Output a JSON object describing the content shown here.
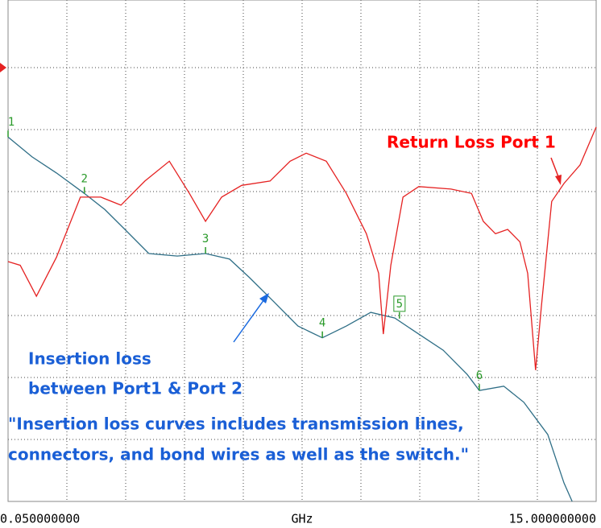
{
  "chart_data": {
    "type": "line",
    "xlabel": "GHz",
    "xlim": [
      0.05,
      15
    ],
    "ylim": [
      0,
      8
    ],
    "xticks": [
      {
        "value": 0.05,
        "label": "0.050000000"
      },
      {
        "value": 15,
        "label": "15.000000000"
      }
    ],
    "grid": true,
    "series": [
      {
        "color": "#2e6e86",
        "x": [
          0.05,
          0.66,
          1.28,
          1.99,
          2.51,
          3.02,
          3.63,
          4.35,
          5.07,
          5.68,
          6.19,
          6.81,
          7.42,
          8.04,
          8.65,
          9.27,
          9.88,
          10.49,
          11.11,
          11.72,
          12.03,
          12.65,
          13.16,
          13.77,
          14.18,
          14.39
        ],
        "values": [
          5.88,
          5.56,
          5.3,
          4.97,
          4.71,
          4.39,
          4.0,
          3.96,
          4.0,
          3.91,
          3.61,
          3.22,
          2.83,
          2.64,
          2.83,
          3.05,
          2.96,
          2.7,
          2.44,
          2.05,
          1.79,
          1.86,
          1.6,
          1.08,
          0.3,
          0
        ]
      },
      {
        "color": "#e52222",
        "x": [
          0.05,
          0.36,
          0.77,
          1.28,
          1.89,
          2.41,
          2.92,
          3.53,
          4.15,
          4.66,
          5.07,
          5.48,
          5.99,
          6.71,
          7.22,
          7.63,
          8.14,
          8.65,
          9.16,
          9.47,
          9.59,
          9.78,
          10.09,
          10.49,
          11.31,
          11.83,
          12.13,
          12.44,
          12.75,
          13.06,
          13.26,
          13.46,
          13.61,
          13.87,
          14.18,
          14.59,
          15.0
        ],
        "values": [
          3.87,
          3.81,
          3.31,
          3.94,
          4.91,
          4.91,
          4.78,
          5.17,
          5.49,
          4.97,
          4.52,
          4.91,
          5.1,
          5.17,
          5.49,
          5.62,
          5.49,
          4.97,
          4.32,
          3.68,
          2.7,
          3.81,
          4.91,
          5.08,
          5.04,
          4.97,
          4.52,
          4.32,
          4.39,
          4.19,
          3.68,
          2.12,
          3.16,
          4.84,
          5.13,
          5.43,
          6.04
        ]
      }
    ],
    "markers": [
      {
        "label": "1",
        "x": 0.05,
        "value": 5.88
      },
      {
        "label": "2",
        "x": 1.99,
        "value": 4.97
      },
      {
        "label": "3",
        "x": 5.07,
        "value": 4.0
      },
      {
        "label": "4",
        "x": 8.04,
        "value": 2.64
      },
      {
        "label": "5",
        "x": 10.0,
        "value": 2.95
      },
      {
        "label": "6",
        "x": 12.03,
        "value": 1.79
      }
    ],
    "annotations": {
      "return_loss": "Return Loss Port 1",
      "insertion_1": "Insertion loss",
      "insertion_2": "between  Port1 & Port 2",
      "quote_1": "\"Insertion loss curves includes transmission lines,",
      "quote_2": "connectors, and bond wires as well as the switch.\""
    }
  }
}
